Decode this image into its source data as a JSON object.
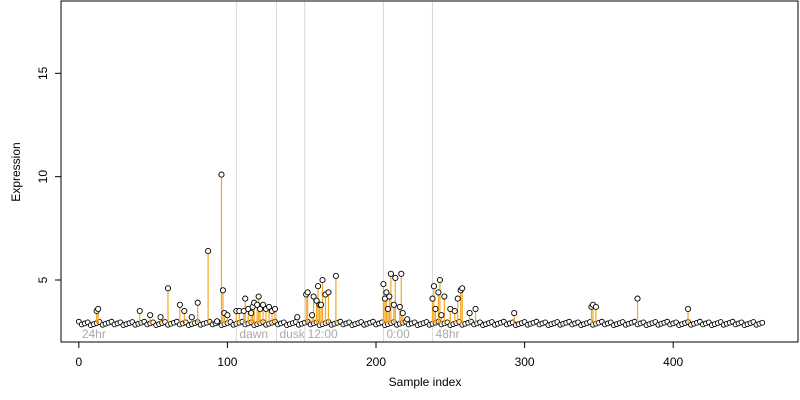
{
  "chart_data": {
    "type": "scatter",
    "title": "",
    "xlabel": "Sample index",
    "ylabel": "Expression",
    "xlim": [
      -12,
      484
    ],
    "ylim": [
      2.0,
      18.5
    ],
    "x_ticks": [
      0,
      100,
      200,
      300,
      400
    ],
    "y_ticks": [
      5,
      10,
      15
    ],
    "grid": false,
    "baseline": 2.9,
    "colors": {
      "baseline_band": "#a9c4e0",
      "stem": "#f5a623",
      "point_fill": "#ffffff",
      "point_edge": "#000000",
      "region_line": "#d9d9d9",
      "region_label": "#aaaaaa"
    },
    "regions": [
      {
        "label": "24hr",
        "x_start": 0
      },
      {
        "label": "dawn",
        "x_start": 106
      },
      {
        "label": "dusk",
        "x_start": 133
      },
      {
        "label": "12:00",
        "x_start": 152
      },
      {
        "label": "0:00",
        "x_start": 205
      },
      {
        "label": "48hr",
        "x_start": 238
      }
    ],
    "series": [
      {
        "values": [
          {
            "x": 12,
            "y": 3.5
          },
          {
            "x": 13,
            "y": 3.6
          },
          {
            "x": 41,
            "y": 3.5
          },
          {
            "x": 48,
            "y": 3.3
          },
          {
            "x": 55,
            "y": 3.2
          },
          {
            "x": 60,
            "y": 4.6
          },
          {
            "x": 68,
            "y": 3.8
          },
          {
            "x": 71,
            "y": 3.5
          },
          {
            "x": 76,
            "y": 3.2
          },
          {
            "x": 80,
            "y": 3.9
          },
          {
            "x": 87,
            "y": 6.4
          },
          {
            "x": 93,
            "y": 3.0
          },
          {
            "x": 96,
            "y": 10.1
          },
          {
            "x": 97,
            "y": 4.5
          },
          {
            "x": 98,
            "y": 3.4
          },
          {
            "x": 100,
            "y": 3.3
          },
          {
            "x": 106,
            "y": 3.5
          },
          {
            "x": 108,
            "y": 3.5
          },
          {
            "x": 111,
            "y": 3.5
          },
          {
            "x": 112,
            "y": 4.1
          },
          {
            "x": 114,
            "y": 3.6
          },
          {
            "x": 116,
            "y": 3.4
          },
          {
            "x": 117,
            "y": 3.7
          },
          {
            "x": 118,
            "y": 3.9
          },
          {
            "x": 120,
            "y": 3.8
          },
          {
            "x": 121,
            "y": 4.2
          },
          {
            "x": 122,
            "y": 3.6
          },
          {
            "x": 124,
            "y": 3.8
          },
          {
            "x": 126,
            "y": 3.6
          },
          {
            "x": 128,
            "y": 3.7
          },
          {
            "x": 130,
            "y": 3.5
          },
          {
            "x": 132,
            "y": 3.6
          },
          {
            "x": 147,
            "y": 3.2
          },
          {
            "x": 153,
            "y": 4.3
          },
          {
            "x": 154,
            "y": 4.4
          },
          {
            "x": 157,
            "y": 3.3
          },
          {
            "x": 158,
            "y": 4.2
          },
          {
            "x": 160,
            "y": 4.0
          },
          {
            "x": 161,
            "y": 4.7
          },
          {
            "x": 162,
            "y": 3.8
          },
          {
            "x": 163,
            "y": 3.8
          },
          {
            "x": 164,
            "y": 5.0
          },
          {
            "x": 166,
            "y": 4.3
          },
          {
            "x": 168,
            "y": 4.4
          },
          {
            "x": 173,
            "y": 5.2
          },
          {
            "x": 205,
            "y": 4.8
          },
          {
            "x": 206,
            "y": 4.1
          },
          {
            "x": 207,
            "y": 4.4
          },
          {
            "x": 208,
            "y": 3.6
          },
          {
            "x": 209,
            "y": 4.2
          },
          {
            "x": 210,
            "y": 5.3
          },
          {
            "x": 212,
            "y": 3.8
          },
          {
            "x": 213,
            "y": 5.1
          },
          {
            "x": 216,
            "y": 3.7
          },
          {
            "x": 217,
            "y": 5.3
          },
          {
            "x": 218,
            "y": 3.4
          },
          {
            "x": 221,
            "y": 3.1
          },
          {
            "x": 238,
            "y": 4.1
          },
          {
            "x": 239,
            "y": 4.7
          },
          {
            "x": 240,
            "y": 3.6
          },
          {
            "x": 242,
            "y": 4.4
          },
          {
            "x": 243,
            "y": 5.0
          },
          {
            "x": 244,
            "y": 3.3
          },
          {
            "x": 246,
            "y": 4.2
          },
          {
            "x": 250,
            "y": 3.6
          },
          {
            "x": 253,
            "y": 3.5
          },
          {
            "x": 255,
            "y": 4.1
          },
          {
            "x": 257,
            "y": 4.5
          },
          {
            "x": 258,
            "y": 4.6
          },
          {
            "x": 263,
            "y": 3.4
          },
          {
            "x": 267,
            "y": 3.6
          },
          {
            "x": 293,
            "y": 3.4
          },
          {
            "x": 345,
            "y": 3.7
          },
          {
            "x": 346,
            "y": 3.8
          },
          {
            "x": 348,
            "y": 3.7
          },
          {
            "x": 376,
            "y": 4.1
          },
          {
            "x": 410,
            "y": 3.6
          }
        ]
      }
    ]
  }
}
